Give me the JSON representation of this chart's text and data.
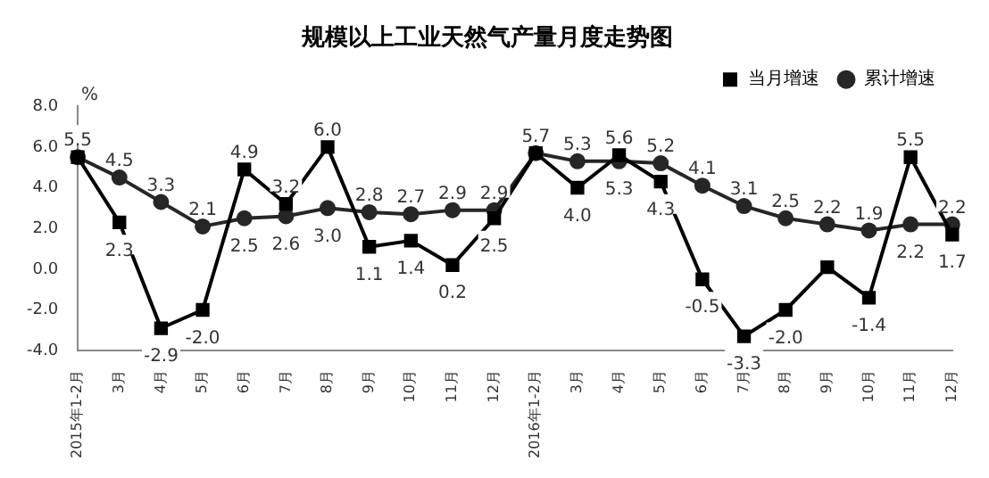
{
  "chart_data": {
    "type": "line",
    "title": "规模以上工业天然气产量月度走势图",
    "ylabel": "%",
    "categories": [
      "2015年1-2月",
      "3月",
      "4月",
      "5月",
      "6月",
      "7月",
      "8月",
      "9月",
      "10月",
      "11月",
      "12月",
      "2016年1-2月",
      "3月",
      "4月",
      "5月",
      "6月",
      "7月",
      "8月",
      "9月",
      "10月",
      "11月",
      "12月"
    ],
    "series": [
      {
        "name": "当月增速",
        "color": "#000000",
        "marker": "square",
        "values": [
          5.5,
          2.3,
          -2.9,
          -2.0,
          4.9,
          3.2,
          6.0,
          1.1,
          1.4,
          0.2,
          2.5,
          5.7,
          4.0,
          5.6,
          4.3,
          -0.5,
          -3.3,
          -2.0,
          0.1,
          -1.4,
          5.5,
          1.7
        ],
        "value_labels": [
          null,
          "2.3",
          "-2.9",
          "-2.0",
          "4.9",
          "3.2",
          "6.0",
          "1.1",
          "1.4",
          "0.2",
          "2.5",
          null,
          "4.0",
          "5.6",
          "4.3",
          "-0.5",
          "-3.3",
          "-2.0",
          null,
          "-1.4",
          "5.5",
          "1.7"
        ]
      },
      {
        "name": "累计增速",
        "color": "#262626",
        "marker": "circle",
        "values": [
          5.5,
          4.5,
          3.3,
          2.1,
          2.5,
          2.6,
          3.0,
          2.8,
          2.7,
          2.9,
          2.9,
          5.7,
          5.3,
          5.3,
          5.2,
          4.1,
          3.1,
          2.5,
          2.2,
          1.9,
          2.2,
          2.2
        ],
        "value_labels": [
          "5.5",
          "4.5",
          "3.3",
          "2.1",
          "2.5",
          "2.6",
          "3.0",
          "2.8",
          "2.7",
          "2.9",
          "2.9",
          "5.7",
          "5.3",
          "5.3",
          "5.2",
          "4.1",
          "3.1",
          "2.5",
          "2.2",
          "1.9",
          "2.2",
          "2.2"
        ]
      }
    ],
    "ylim": [
      -4,
      8
    ],
    "yticks": [
      {
        "value": -4,
        "label": "-4.0"
      },
      {
        "value": -2,
        "label": "-2.0"
      },
      {
        "value": 0,
        "label": "0.0"
      },
      {
        "value": 2,
        "label": "2.0"
      },
      {
        "value": 4,
        "label": "4.0"
      },
      {
        "value": 6,
        "label": "6.0"
      },
      {
        "value": 8,
        "label": "8.0"
      }
    ],
    "grid": false,
    "legend": "top right",
    "line_style": "solid"
  }
}
